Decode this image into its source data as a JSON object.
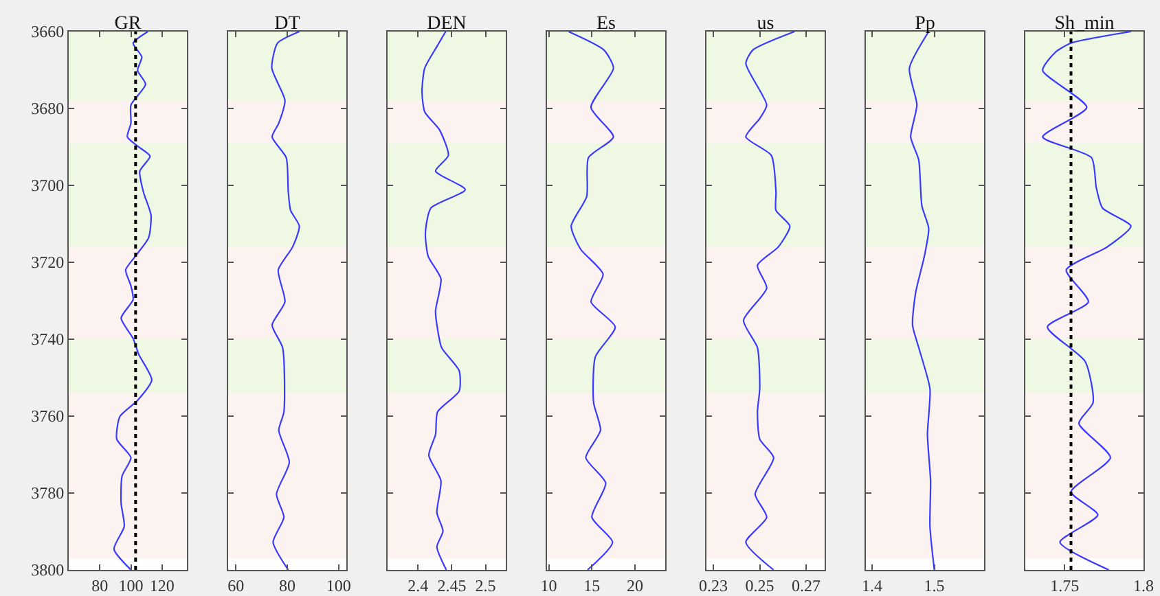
{
  "chart_data": [
    {
      "type": "line",
      "title": "GR",
      "xlim": [
        60,
        136
      ],
      "xticks": [
        80,
        100,
        120
      ],
      "ylim": [
        3800,
        3660
      ],
      "yticks": [
        3660,
        3680,
        3700,
        3720,
        3740,
        3760,
        3780,
        3800
      ],
      "grid": false,
      "series": [
        {
          "color": "#3a3aff",
          "x": [
            110.9,
            101.4,
            107,
            104.3,
            109.4,
            100,
            100,
            97.7,
            104.3,
            112.3,
            105.7,
            108,
            112.9,
            111.4,
            102.9,
            96.6,
            100,
            101.4,
            93.7,
            101.4,
            105.1,
            113.4,
            104.3,
            92.9,
            90.9,
            100,
            94.3,
            93.7,
            95.7,
            89.1,
            100
          ],
          "values": [
            3660,
            3663,
            3666.6,
            3670.1,
            3673.7,
            3679.1,
            3683.8,
            3687.4,
            3689.8,
            3692.4,
            3696.3,
            3701.7,
            3707.7,
            3713.6,
            3718.4,
            3722,
            3726.1,
            3729.7,
            3734.5,
            3739.8,
            3744,
            3750.6,
            3755.9,
            3760.1,
            3766,
            3770.8,
            3775.6,
            3782.7,
            3788.7,
            3794.6,
            3800
          ]
        }
      ],
      "ref_lines": [
        {
          "axis": "x",
          "value": 103,
          "color": "#000000",
          "line_style": "dotted"
        }
      ],
      "bands": [
        {
          "axis": "y",
          "from": 3660,
          "to": 3678,
          "color": "#eef8e3"
        },
        {
          "axis": "y",
          "from": 3678,
          "to": 3689,
          "color": "#fcf2f0"
        },
        {
          "axis": "y",
          "from": 3689,
          "to": 3716,
          "color": "#eef8e3"
        },
        {
          "axis": "y",
          "from": 3716,
          "to": 3740,
          "color": "#fcf2f0"
        },
        {
          "axis": "y",
          "from": 3740,
          "to": 3754,
          "color": "#eef8e3"
        },
        {
          "axis": "y",
          "from": 3754,
          "to": 3797,
          "color": "#fcf2f0"
        }
      ]
    },
    {
      "type": "line",
      "title": "DT",
      "xlim": [
        57,
        103
      ],
      "xticks": [
        60,
        80,
        100
      ],
      "ylim": [
        3800,
        3660
      ],
      "yticks": [
        3660,
        3680,
        3700,
        3720,
        3740,
        3760,
        3780,
        3800
      ],
      "grid": false,
      "tick_labels": "x",
      "series": [
        {
          "color": "#3a3aff",
          "x": [
            84.7,
            76.2,
            74,
            79.1,
            76.7,
            74.1,
            79.6,
            80.4,
            81.3,
            84.7,
            82.1,
            76.5,
            79.1,
            74.1,
            78.2,
            78.7,
            76.7,
            80.8,
            75.8,
            78.7,
            74.5,
            80.4
          ],
          "values": [
            3660,
            3663,
            3669.5,
            3677.9,
            3683.8,
            3687.4,
            3692.8,
            3701.7,
            3706.5,
            3710.6,
            3716,
            3722,
            3730.3,
            3736.3,
            3742.2,
            3758.9,
            3763.7,
            3772,
            3780.3,
            3786.3,
            3792.8,
            3800
          ]
        }
      ],
      "bands": [
        {
          "axis": "y",
          "from": 3660,
          "to": 3678,
          "color": "#eef8e3"
        },
        {
          "axis": "y",
          "from": 3678,
          "to": 3689,
          "color": "#fcf2f0"
        },
        {
          "axis": "y",
          "from": 3689,
          "to": 3716,
          "color": "#eef8e3"
        },
        {
          "axis": "y",
          "from": 3716,
          "to": 3740,
          "color": "#fcf2f0"
        },
        {
          "axis": "y",
          "from": 3740,
          "to": 3754,
          "color": "#eef8e3"
        },
        {
          "axis": "y",
          "from": 3754,
          "to": 3797,
          "color": "#fcf2f0"
        }
      ]
    },
    {
      "type": "line",
      "title": "DEN",
      "xlim": [
        2.355,
        2.53
      ],
      "xticks": [
        2.4,
        2.45,
        2.5
      ],
      "ylim": [
        3800,
        3660
      ],
      "yticks": [
        3660,
        3680,
        3700,
        3720,
        3740,
        3760,
        3780,
        3800
      ],
      "grid": false,
      "tick_labels": "x",
      "series": [
        {
          "color": "#3a3aff",
          "x": [
            2.441,
            2.429,
            2.41,
            2.406,
            2.41,
            2.432,
            2.445,
            2.426,
            2.47,
            2.419,
            2.411,
            2.415,
            2.434,
            2.426,
            2.429,
            2.435,
            2.461,
            2.461,
            2.429,
            2.426,
            2.416,
            2.434,
            2.428,
            2.437,
            2.428,
            2.442
          ],
          "values": [
            3660,
            3663.6,
            3669.5,
            3675.5,
            3680.9,
            3685.6,
            3692.2,
            3696.3,
            3701.1,
            3705.9,
            3712.4,
            3718.4,
            3724.3,
            3732.7,
            3737.4,
            3742.2,
            3748.2,
            3753.5,
            3758.9,
            3764.8,
            3770.2,
            3776.8,
            3785.1,
            3789.9,
            3794,
            3800
          ]
        }
      ],
      "bands": [
        {
          "axis": "y",
          "from": 3660,
          "to": 3678,
          "color": "#eef8e3"
        },
        {
          "axis": "y",
          "from": 3678,
          "to": 3689,
          "color": "#fcf2f0"
        },
        {
          "axis": "y",
          "from": 3689,
          "to": 3716,
          "color": "#eef8e3"
        },
        {
          "axis": "y",
          "from": 3716,
          "to": 3740,
          "color": "#fcf2f0"
        },
        {
          "axis": "y",
          "from": 3740,
          "to": 3754,
          "color": "#eef8e3"
        },
        {
          "axis": "y",
          "from": 3754,
          "to": 3797,
          "color": "#fcf2f0"
        }
      ]
    },
    {
      "type": "line",
      "title": "Es",
      "xlim": [
        9.8,
        23.5
      ],
      "xticks": [
        10,
        15,
        20
      ],
      "ylim": [
        3800,
        3660
      ],
      "yticks": [
        3660,
        3680,
        3700,
        3720,
        3740,
        3760,
        3780,
        3800
      ],
      "grid": false,
      "tick_labels": "x",
      "series": [
        {
          "color": "#3a3aff",
          "x": [
            12.3,
            16.4,
            17.5,
            14.9,
            17.5,
            14.6,
            14.4,
            12.6,
            13.7,
            16.3,
            14.9,
            17.7,
            15.4,
            15.2,
            16,
            14.3,
            16.6,
            15,
            17.4,
            14.5
          ],
          "values": [
            3660,
            3664.8,
            3669.5,
            3679.7,
            3687.4,
            3692.8,
            3702.9,
            3710.6,
            3716.6,
            3723.1,
            3730.3,
            3736.8,
            3744.6,
            3756.5,
            3763.7,
            3770.8,
            3777.4,
            3786.3,
            3792.8,
            3800
          ]
        }
      ],
      "bands": [
        {
          "axis": "y",
          "from": 3660,
          "to": 3678,
          "color": "#eef8e3"
        },
        {
          "axis": "y",
          "from": 3678,
          "to": 3689,
          "color": "#fcf2f0"
        },
        {
          "axis": "y",
          "from": 3689,
          "to": 3716,
          "color": "#eef8e3"
        },
        {
          "axis": "y",
          "from": 3716,
          "to": 3740,
          "color": "#fcf2f0"
        },
        {
          "axis": "y",
          "from": 3740,
          "to": 3754,
          "color": "#eef8e3"
        },
        {
          "axis": "y",
          "from": 3754,
          "to": 3797,
          "color": "#fcf2f0"
        }
      ]
    },
    {
      "type": "line",
      "title": "us",
      "xlim": [
        0.227,
        0.278
      ],
      "xticks": [
        0.23,
        0.25,
        0.27
      ],
      "ylim": [
        3800,
        3660
      ],
      "yticks": [
        3660,
        3680,
        3700,
        3720,
        3740,
        3760,
        3780,
        3800
      ],
      "grid": false,
      "tick_labels": "x",
      "series": [
        {
          "color": "#3a3aff",
          "x": [
            0.265,
            0.247,
            0.244,
            0.253,
            0.25,
            0.244,
            0.255,
            0.257,
            0.257,
            0.263,
            0.258,
            0.249,
            0.253,
            0.243,
            0.249,
            0.25,
            0.249,
            0.25,
            0.256,
            0.248,
            0.253,
            0.244,
            0.256
          ],
          "values": [
            3660,
            3664.8,
            3668.3,
            3679.1,
            3682.6,
            3687.4,
            3692.2,
            3701.7,
            3706.5,
            3710.6,
            3716,
            3720.8,
            3726.7,
            3735.1,
            3742.2,
            3752.9,
            3758.9,
            3766,
            3770.8,
            3780.3,
            3786.3,
            3792.8,
            3800
          ]
        }
      ],
      "bands": [
        {
          "axis": "y",
          "from": 3660,
          "to": 3678,
          "color": "#eef8e3"
        },
        {
          "axis": "y",
          "from": 3678,
          "to": 3689,
          "color": "#fcf2f0"
        },
        {
          "axis": "y",
          "from": 3689,
          "to": 3716,
          "color": "#eef8e3"
        },
        {
          "axis": "y",
          "from": 3716,
          "to": 3740,
          "color": "#fcf2f0"
        },
        {
          "axis": "y",
          "from": 3740,
          "to": 3754,
          "color": "#eef8e3"
        },
        {
          "axis": "y",
          "from": 3754,
          "to": 3797,
          "color": "#fcf2f0"
        }
      ]
    },
    {
      "type": "line",
      "title": "Pp",
      "xlim": [
        1.39,
        1.58
      ],
      "xticks": [
        1.4,
        1.5
      ],
      "ylim": [
        3800,
        3660
      ],
      "yticks": [
        3660,
        3680,
        3700,
        3720,
        3740,
        3760,
        3780,
        3800
      ],
      "grid": false,
      "tick_labels": "x",
      "series": [
        {
          "color": "#3a3aff",
          "x": [
            1.491,
            1.46,
            1.472,
            1.462,
            1.475,
            1.48,
            1.491,
            1.484,
            1.47,
            1.465,
            1.475,
            1.493,
            1.489,
            1.494,
            1.493,
            1.5
          ],
          "values": [
            3660,
            3669.5,
            3679.1,
            3687.4,
            3693.4,
            3705.3,
            3711.2,
            3718.4,
            3727.9,
            3736.3,
            3742.2,
            3752.9,
            3764.8,
            3776.8,
            3788.7,
            3800
          ]
        }
      ],
      "bands": [
        {
          "axis": "y",
          "from": 3660,
          "to": 3678,
          "color": "#eef8e3"
        },
        {
          "axis": "y",
          "from": 3678,
          "to": 3689,
          "color": "#fcf2f0"
        },
        {
          "axis": "y",
          "from": 3689,
          "to": 3716,
          "color": "#eef8e3"
        },
        {
          "axis": "y",
          "from": 3716,
          "to": 3740,
          "color": "#fcf2f0"
        },
        {
          "axis": "y",
          "from": 3740,
          "to": 3754,
          "color": "#eef8e3"
        },
        {
          "axis": "y",
          "from": 3754,
          "to": 3797,
          "color": "#fcf2f0"
        }
      ]
    },
    {
      "type": "line",
      "title": "Sh_min",
      "xlim": [
        1.725,
        1.8
      ],
      "xticks": [
        1.75,
        1.8
      ],
      "ylim": [
        3800,
        3660
      ],
      "yticks": [
        3660,
        3680,
        3700,
        3720,
        3740,
        3760,
        3780,
        3800
      ],
      "grid": false,
      "tick_labels": "x",
      "series": [
        {
          "color": "#3a3aff",
          "x": [
            1.792,
            1.754,
            1.744,
            1.736,
            1.764,
            1.736,
            1.767,
            1.77,
            1.774,
            1.792,
            1.777,
            1.751,
            1.765,
            1.739,
            1.763,
            1.768,
            1.759,
            1.779,
            1.754,
            1.771,
            1.747,
            1.778
          ],
          "values": [
            3660,
            3663,
            3665.4,
            3670.1,
            3679.7,
            3687.4,
            3692.8,
            3700.5,
            3705.9,
            3710.6,
            3716,
            3722,
            3730.3,
            3736.8,
            3745.8,
            3756.5,
            3761.9,
            3770.8,
            3779.7,
            3785.7,
            3792.8,
            3800
          ]
        }
      ],
      "ref_lines": [
        {
          "axis": "x",
          "value": 1.754,
          "color": "#000000",
          "line_style": "dotted"
        }
      ],
      "bands": [
        {
          "axis": "y",
          "from": 3660,
          "to": 3678,
          "color": "#eef8e3"
        },
        {
          "axis": "y",
          "from": 3678,
          "to": 3689,
          "color": "#fcf2f0"
        },
        {
          "axis": "y",
          "from": 3689,
          "to": 3716,
          "color": "#eef8e3"
        },
        {
          "axis": "y",
          "from": 3716,
          "to": 3740,
          "color": "#fcf2f0"
        },
        {
          "axis": "y",
          "from": 3740,
          "to": 3754,
          "color": "#eef8e3"
        },
        {
          "axis": "y",
          "from": 3754,
          "to": 3797,
          "color": "#fcf2f0"
        }
      ]
    }
  ]
}
